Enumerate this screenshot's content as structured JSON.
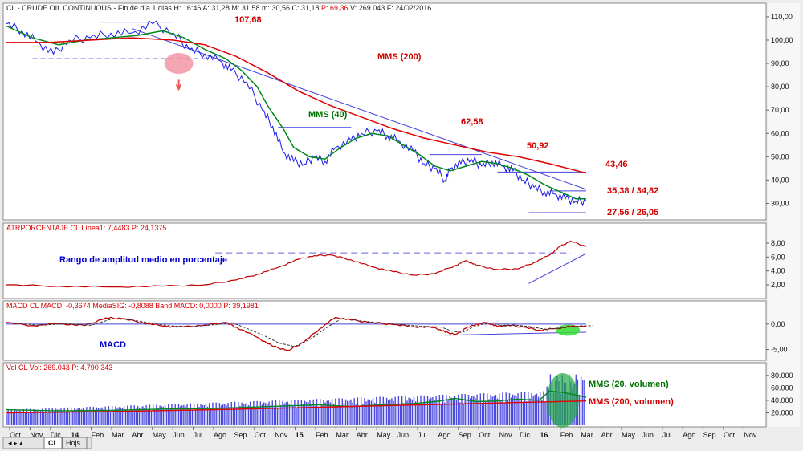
{
  "chart_data": [
    {
      "type": "line",
      "header": {
        "prefix": "CL - CRUDE OIL CONTINUOUS - Fin de día 1 días H: 16:46 A: 31,28 M: 31,58 m: 30,56 C: 31,18 ",
        "pct": "P: 69,36",
        "suffix": " V: 269.043 F: 24/02/2016"
      },
      "y_ticks": [
        "110,00",
        "100,00",
        "90,00",
        "80,00",
        "70,00",
        "60,00",
        "50,00",
        "40,00",
        "30,00"
      ],
      "ylim": [
        25,
        111
      ],
      "annotations": [
        {
          "text": "107,68",
          "color": "#d00000"
        },
        {
          "text": "MMS (200)",
          "color": "#d00000"
        },
        {
          "text": "MMS (40)",
          "color": "#007000"
        },
        {
          "text": "62,58",
          "color": "#d00000"
        },
        {
          "text": "50,92",
          "color": "#d00000"
        },
        {
          "text": "43,46",
          "color": "#d00000"
        },
        {
          "text": "35,38 / 34,82",
          "color": "#d00000"
        },
        {
          "text": "27,56 / 26,05",
          "color": "#d00000"
        }
      ],
      "series": [
        {
          "name": "Price",
          "color": "#1a1aee",
          "points": [
            [
              0,
              107
            ],
            [
              3,
              104
            ],
            [
              6,
              99
            ],
            [
              9,
              94
            ],
            [
              12,
              100
            ],
            [
              16,
              101
            ],
            [
              20,
              103
            ],
            [
              24,
              103
            ],
            [
              28,
              107
            ],
            [
              32,
              103
            ],
            [
              35,
              96
            ],
            [
              38,
              94
            ],
            [
              41,
              91
            ],
            [
              43,
              87
            ],
            [
              46,
              82
            ],
            [
              49,
              70
            ],
            [
              51,
              63
            ],
            [
              53,
              52
            ],
            [
              55,
              48
            ],
            [
              57,
              47
            ],
            [
              59,
              50
            ],
            [
              61,
              48
            ],
            [
              63,
              54
            ],
            [
              66,
              57
            ],
            [
              68,
              60
            ],
            [
              71,
              61
            ],
            [
              73,
              59
            ],
            [
              75,
              57
            ],
            [
              78,
              52
            ],
            [
              80,
              47
            ],
            [
              82,
              45
            ],
            [
              84,
              40
            ],
            [
              85,
              45
            ],
            [
              87,
              47
            ],
            [
              89,
              49
            ],
            [
              91,
              46
            ],
            [
              93,
              48
            ],
            [
              95,
              46
            ],
            [
              97,
              44
            ],
            [
              99,
              40
            ],
            [
              101,
              37
            ],
            [
              103,
              35
            ],
            [
              105,
              34
            ],
            [
              107,
              32
            ],
            [
              109,
              31
            ],
            [
              111,
              31
            ]
          ]
        },
        {
          "name": "MMS (40)",
          "color": "#00881e",
          "points": [
            [
              0,
              106
            ],
            [
              5,
              101
            ],
            [
              10,
              98
            ],
            [
              15,
              100
            ],
            [
              20,
              101
            ],
            [
              25,
              102
            ],
            [
              30,
              104
            ],
            [
              34,
              101
            ],
            [
              38,
              96
            ],
            [
              42,
              92
            ],
            [
              45,
              87
            ],
            [
              48,
              80
            ],
            [
              50,
              72
            ],
            [
              53,
              62
            ],
            [
              55,
              54
            ],
            [
              58,
              50
            ],
            [
              61,
              49
            ],
            [
              64,
              54
            ],
            [
              67,
              58
            ],
            [
              70,
              60
            ],
            [
              73,
              59
            ],
            [
              76,
              55
            ],
            [
              79,
              51
            ],
            [
              82,
              46
            ],
            [
              85,
              44
            ],
            [
              88,
              46
            ],
            [
              91,
              48
            ],
            [
              94,
              47
            ],
            [
              97,
              45
            ],
            [
              100,
              42
            ],
            [
              103,
              38
            ],
            [
              106,
              35
            ],
            [
              109,
              32
            ],
            [
              111,
              32
            ]
          ]
        },
        {
          "name": "MMS (200)",
          "color": "#e00000",
          "points": [
            [
              0,
              99
            ],
            [
              8,
              99
            ],
            [
              16,
              100
            ],
            [
              24,
              101
            ],
            [
              32,
              100
            ],
            [
              38,
              98
            ],
            [
              44,
              93
            ],
            [
              50,
              86
            ],
            [
              56,
              78
            ],
            [
              62,
              72
            ],
            [
              68,
              67
            ],
            [
              74,
              62
            ],
            [
              80,
              58
            ],
            [
              86,
              55
            ],
            [
              92,
              52
            ],
            [
              98,
              50
            ],
            [
              104,
              47
            ],
            [
              111,
              43
            ]
          ]
        }
      ]
    },
    {
      "type": "line",
      "header": "ATRPORCENTAJE  CL  Línea1: 7,4483  P: 24,1375",
      "y_ticks": [
        "8,00",
        "6,00",
        "4,00",
        "2,00"
      ],
      "ylim": [
        0.5,
        9.5
      ],
      "annotations": [
        {
          "text": "Rango de amplitud medio en porcentaje",
          "color": "#0000cc"
        }
      ],
      "series": [
        {
          "name": "ATR%",
          "color": "#c00000",
          "points": [
            [
              0,
              2.0
            ],
            [
              10,
              1.8
            ],
            [
              20,
              1.7
            ],
            [
              30,
              1.8
            ],
            [
              38,
              2.0
            ],
            [
              44,
              2.7
            ],
            [
              48,
              3.5
            ],
            [
              52,
              4.5
            ],
            [
              56,
              5.7
            ],
            [
              59,
              6.2
            ],
            [
              62,
              6.3
            ],
            [
              66,
              5.6
            ],
            [
              70,
              4.6
            ],
            [
              74,
              3.9
            ],
            [
              78,
              3.4
            ],
            [
              82,
              3.6
            ],
            [
              86,
              4.8
            ],
            [
              88,
              5.5
            ],
            [
              90,
              4.8
            ],
            [
              94,
              4.2
            ],
            [
              98,
              4.3
            ],
            [
              101,
              5.2
            ],
            [
              104,
              6.3
            ],
            [
              106,
              7.5
            ],
            [
              108,
              8.3
            ],
            [
              111,
              7.5
            ]
          ]
        }
      ]
    },
    {
      "type": "line",
      "header": "MACD  CL  MACD: -0,3674  MediaSIG: -0,8088  Band  MACD: 0,0000  P: 39,1981",
      "y_ticks": [
        "0,00",
        "-5,00"
      ],
      "ylim": [
        -6.5,
        2.5
      ],
      "annotations": [
        {
          "text": "MACD",
          "color": "#0000cc"
        }
      ],
      "series": [
        {
          "name": "MACD",
          "color": "#c00000",
          "points": [
            [
              0,
              0.3
            ],
            [
              5,
              -0.3
            ],
            [
              10,
              0.1
            ],
            [
              15,
              -0.3
            ],
            [
              19,
              1.2
            ],
            [
              22,
              1.1
            ],
            [
              26,
              0.3
            ],
            [
              30,
              -0.4
            ],
            [
              34,
              -0.6
            ],
            [
              38,
              -0.2
            ],
            [
              42,
              0.3
            ],
            [
              44,
              -0.6
            ],
            [
              48,
              -2.6
            ],
            [
              51,
              -4.4
            ],
            [
              54,
              -5.2
            ],
            [
              57,
              -3.5
            ],
            [
              60,
              -0.9
            ],
            [
              63,
              1.3
            ],
            [
              66,
              0.8
            ],
            [
              70,
              0.3
            ],
            [
              74,
              -0.1
            ],
            [
              78,
              -0.5
            ],
            [
              82,
              -0.7
            ],
            [
              84,
              -1.6
            ],
            [
              86,
              -2.0
            ],
            [
              88,
              -0.8
            ],
            [
              90,
              0.0
            ],
            [
              92,
              0.3
            ],
            [
              94,
              -0.5
            ],
            [
              96,
              -0.2
            ],
            [
              99,
              -0.6
            ],
            [
              102,
              -1.2
            ],
            [
              105,
              -0.9
            ],
            [
              108,
              -0.5
            ],
            [
              111,
              -0.37
            ]
          ]
        }
      ]
    },
    {
      "type": "bar",
      "header": "Vol  CL  Vol: 269.043  P: 4.790 343",
      "y_ticks": [
        "80.000",
        "60.000",
        "40.000",
        "20.000"
      ],
      "ylim": [
        0,
        85000
      ],
      "annotations": [
        {
          "text": "MMS (20, volumen)",
          "color": "#007000"
        },
        {
          "text": "MMS (200, volumen)",
          "color": "#d00000"
        }
      ],
      "series": [
        {
          "name": "MMS (20, volumen)",
          "color": "#00881e",
          "points": [
            [
              0,
              25000
            ],
            [
              10,
              23000
            ],
            [
              20,
              24000
            ],
            [
              30,
              26000
            ],
            [
              40,
              27000
            ],
            [
              50,
              30000
            ],
            [
              60,
              33000
            ],
            [
              66,
              30000
            ],
            [
              72,
              33000
            ],
            [
              78,
              35000
            ],
            [
              82,
              38000
            ],
            [
              86,
              43000
            ],
            [
              90,
              38000
            ],
            [
              94,
              39000
            ],
            [
              98,
              42000
            ],
            [
              102,
              40000
            ],
            [
              104,
              55000
            ],
            [
              107,
              52000
            ],
            [
              111,
              45000
            ]
          ]
        },
        {
          "name": "MMS (200, volumen)",
          "color": "#e00000",
          "points": [
            [
              0,
              20000
            ],
            [
              20,
              22000
            ],
            [
              40,
              25000
            ],
            [
              60,
              29000
            ],
            [
              80,
              33000
            ],
            [
              100,
              37000
            ],
            [
              111,
              39000
            ]
          ]
        }
      ]
    }
  ],
  "x_axis_labels": [
    "Oct",
    "Nov",
    "Dic",
    "14",
    "Feb",
    "Mar",
    "Abr",
    "May",
    "Jun",
    "Jul",
    "Ago",
    "Sep",
    "Oct",
    "Nov",
    "15",
    "Feb",
    "Mar",
    "Abr",
    "May",
    "Jun",
    "Jul",
    "Ago",
    "Sep",
    "Oct",
    "Nov",
    "Dic",
    "16",
    "Feb",
    "Mar",
    "Abr",
    "May",
    "Jun",
    "Jul",
    "Ago",
    "Sep",
    "Oct",
    "Nov"
  ],
  "x_axis_bold": [
    "14",
    "15",
    "16"
  ],
  "tabs": {
    "tab1": "CL",
    "tab2": "Hojs"
  },
  "colors": {
    "price": "#1a1aee",
    "mms40": "#00881e",
    "mms200": "#e00000",
    "background": "#ffffff",
    "annotation": "#d00000"
  }
}
